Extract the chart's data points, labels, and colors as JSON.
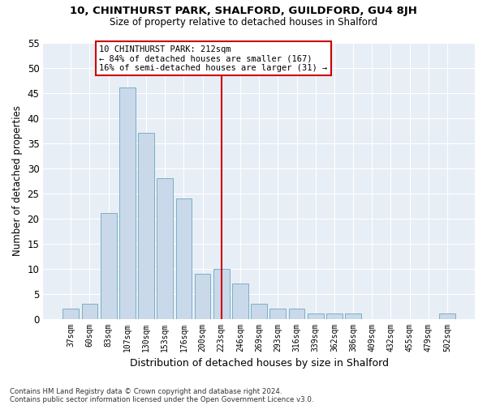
{
  "title1": "10, CHINTHURST PARK, SHALFORD, GUILDFORD, GU4 8JH",
  "title2": "Size of property relative to detached houses in Shalford",
  "xlabel": "Distribution of detached houses by size in Shalford",
  "ylabel": "Number of detached properties",
  "bar_labels": [
    "37sqm",
    "60sqm",
    "83sqm",
    "107sqm",
    "130sqm",
    "153sqm",
    "176sqm",
    "200sqm",
    "223sqm",
    "246sqm",
    "269sqm",
    "293sqm",
    "316sqm",
    "339sqm",
    "362sqm",
    "386sqm",
    "409sqm",
    "432sqm",
    "455sqm",
    "479sqm",
    "502sqm"
  ],
  "bar_values": [
    2,
    3,
    21,
    46,
    37,
    28,
    24,
    9,
    10,
    7,
    3,
    2,
    2,
    1,
    1,
    1,
    0,
    0,
    0,
    0,
    1
  ],
  "bar_color": "#c9d9ea",
  "bar_edgecolor": "#7aafc7",
  "vline_x": 8,
  "vline_color": "#cc0000",
  "annotation_text": "10 CHINTHURST PARK: 212sqm\n← 84% of detached houses are smaller (167)\n16% of semi-detached houses are larger (31) →",
  "annotation_box_color": "#cc0000",
  "ylim": [
    0,
    55
  ],
  "yticks": [
    0,
    5,
    10,
    15,
    20,
    25,
    30,
    35,
    40,
    45,
    50,
    55
  ],
  "footnote1": "Contains HM Land Registry data © Crown copyright and database right 2024.",
  "footnote2": "Contains public sector information licensed under the Open Government Licence v3.0.",
  "bg_color": "#ffffff",
  "plot_bg_color": "#e8eef5"
}
